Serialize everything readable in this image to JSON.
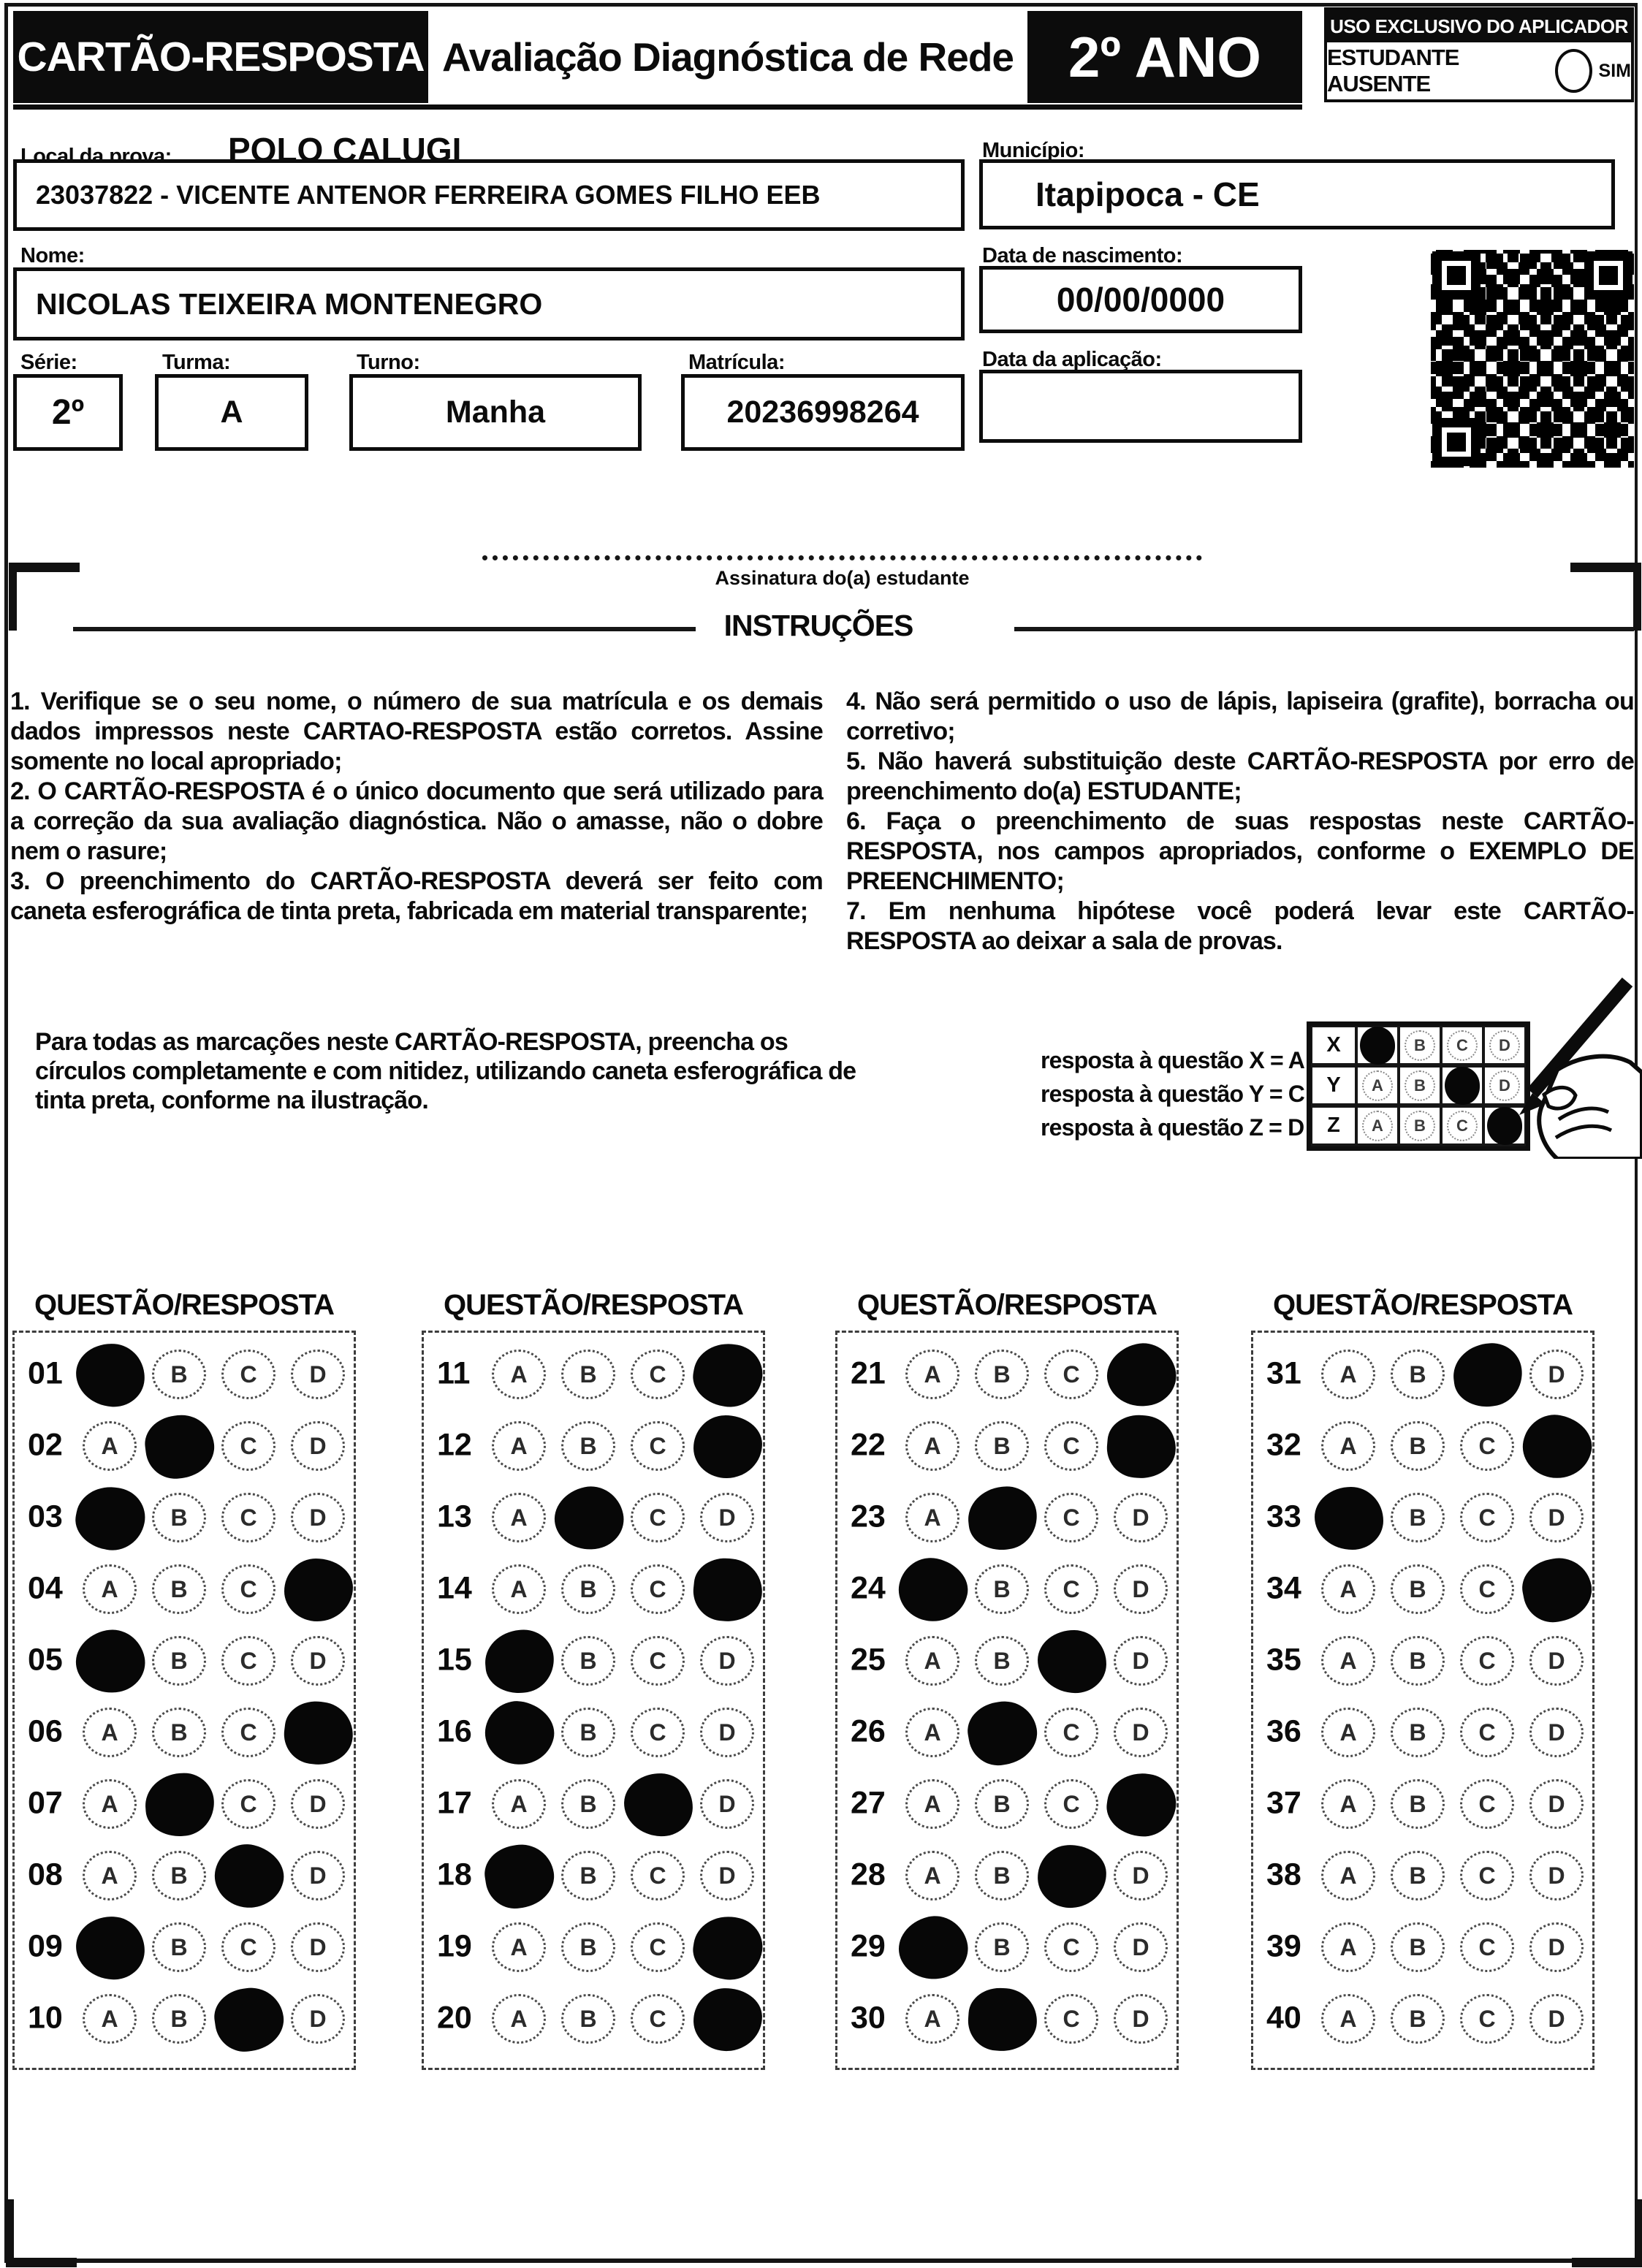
{
  "header": {
    "card_title": "CARTÃO-RESPOSTA",
    "exam_title": "Avaliação Diagnóstica de Rede",
    "grade": "2º ANO",
    "applicator_box_title": "USO EXCLUSIVO DO APLICADOR",
    "absent_label": "ESTUDANTE AUSENTE",
    "absent_option": "SIM"
  },
  "form": {
    "local_label": "Local da prova:",
    "local_value": "POLO CALUGI",
    "school_value": "23037822 - VICENTE ANTENOR FERREIRA GOMES FILHO EEB",
    "municipio_label": "Município:",
    "municipio_value": "Itapipoca - CE",
    "nome_label": "Nome:",
    "nome_value": "NICOLAS TEIXEIRA MONTENEGRO",
    "nascimento_label": "Data de nascimento:",
    "nascimento_value": "00/00/0000",
    "serie_label": "Série:",
    "serie_value": "2º",
    "turma_label": "Turma:",
    "turma_value": "A",
    "turno_label": "Turno:",
    "turno_value": "Manha",
    "matricula_label": "Matrícula:",
    "matricula_value": "20236998264",
    "aplicacao_label": "Data da aplicação:",
    "aplicacao_value": "",
    "assinatura_label": "Assinatura do(a) estudante"
  },
  "instructions": {
    "title": "INSTRUÇÕES",
    "left_items": [
      "1. Verifique se o seu nome, o número de sua matrícula e os demais dados impressos neste CARTAO-RESPOSTA estão corretos. Assine somente no local apropriado;",
      "2. O CARTÃO-RESPOSTA é o único documento que será utilizado para a correção da sua avaliação diagnóstica. Não o amasse, não o dobre nem o rasure;",
      "3. O preenchimento do CARTÃO-RESPOSTA deverá ser feito com caneta esferográfica de tinta preta, fabricada em material transparente;"
    ],
    "right_items": [
      "4. Não será permitido o uso de lápis, lapiseira (grafite), borracha ou corretivo;",
      "5. Não haverá substituição deste CARTÃO-RESPOSTA por erro de preenchimento do(a) ESTUDANTE;",
      "6. Faça o preenchimento de suas respostas neste CARTÃO-RESPOSTA, nos campos apropriados, conforme o EXEMPLO DE PREENCHIMENTO;",
      "7. Em nenhuma hipótese você poderá levar este CARTÃO-RESPOSTA ao deixar a sala de provas."
    ]
  },
  "example": {
    "note_lines": [
      "Para todas as marcações neste CARTÃO-RESPOSTA, preencha os",
      "círculos completamente e com nitidez, utilizando caneta esferográfica de",
      "tinta preta, conforme na ilustração."
    ],
    "legend": [
      "resposta à questão X = A",
      "resposta à questão Y = C",
      "resposta à questão Z = D"
    ],
    "grid": {
      "options": [
        "A",
        "B",
        "C",
        "D"
      ],
      "rows": [
        {
          "label": "X",
          "marked": "A"
        },
        {
          "label": "Y",
          "marked": "C"
        },
        {
          "label": "Z",
          "marked": "D"
        }
      ]
    }
  },
  "answer_section": {
    "column_header": "QUESTÃO/RESPOSTA",
    "options": [
      "A",
      "B",
      "C",
      "D"
    ],
    "columns": [
      {
        "questions": [
          {
            "number": "01",
            "marked": "A"
          },
          {
            "number": "02",
            "marked": "B"
          },
          {
            "number": "03",
            "marked": "A"
          },
          {
            "number": "04",
            "marked": "D"
          },
          {
            "number": "05",
            "marked": "A"
          },
          {
            "number": "06",
            "marked": "D"
          },
          {
            "number": "07",
            "marked": "B"
          },
          {
            "number": "08",
            "marked": "C"
          },
          {
            "number": "09",
            "marked": "A"
          },
          {
            "number": "10",
            "marked": "C"
          }
        ]
      },
      {
        "questions": [
          {
            "number": "11",
            "marked": "D"
          },
          {
            "number": "12",
            "marked": "D"
          },
          {
            "number": "13",
            "marked": "B"
          },
          {
            "number": "14",
            "marked": "D"
          },
          {
            "number": "15",
            "marked": "A"
          },
          {
            "number": "16",
            "marked": "A"
          },
          {
            "number": "17",
            "marked": "C"
          },
          {
            "number": "18",
            "marked": "A"
          },
          {
            "number": "19",
            "marked": "D"
          },
          {
            "number": "20",
            "marked": "D"
          }
        ]
      },
      {
        "questions": [
          {
            "number": "21",
            "marked": "D"
          },
          {
            "number": "22",
            "marked": "D"
          },
          {
            "number": "23",
            "marked": "B"
          },
          {
            "number": "24",
            "marked": "A"
          },
          {
            "number": "25",
            "marked": "C"
          },
          {
            "number": "26",
            "marked": "B"
          },
          {
            "number": "27",
            "marked": "D"
          },
          {
            "number": "28",
            "marked": "C"
          },
          {
            "number": "29",
            "marked": "A"
          },
          {
            "number": "30",
            "marked": "B"
          }
        ]
      },
      {
        "questions": [
          {
            "number": "31",
            "marked": "C"
          },
          {
            "number": "32",
            "marked": "D"
          },
          {
            "number": "33",
            "marked": "A"
          },
          {
            "number": "34",
            "marked": "D"
          },
          {
            "number": "35",
            "marked": null
          },
          {
            "number": "36",
            "marked": null
          },
          {
            "number": "37",
            "marked": null
          },
          {
            "number": "38",
            "marked": null
          },
          {
            "number": "39",
            "marked": null
          },
          {
            "number": "40",
            "marked": null
          }
        ]
      }
    ]
  },
  "colors": {
    "ink": "#0b0b0b",
    "paper": "#ffffff"
  }
}
